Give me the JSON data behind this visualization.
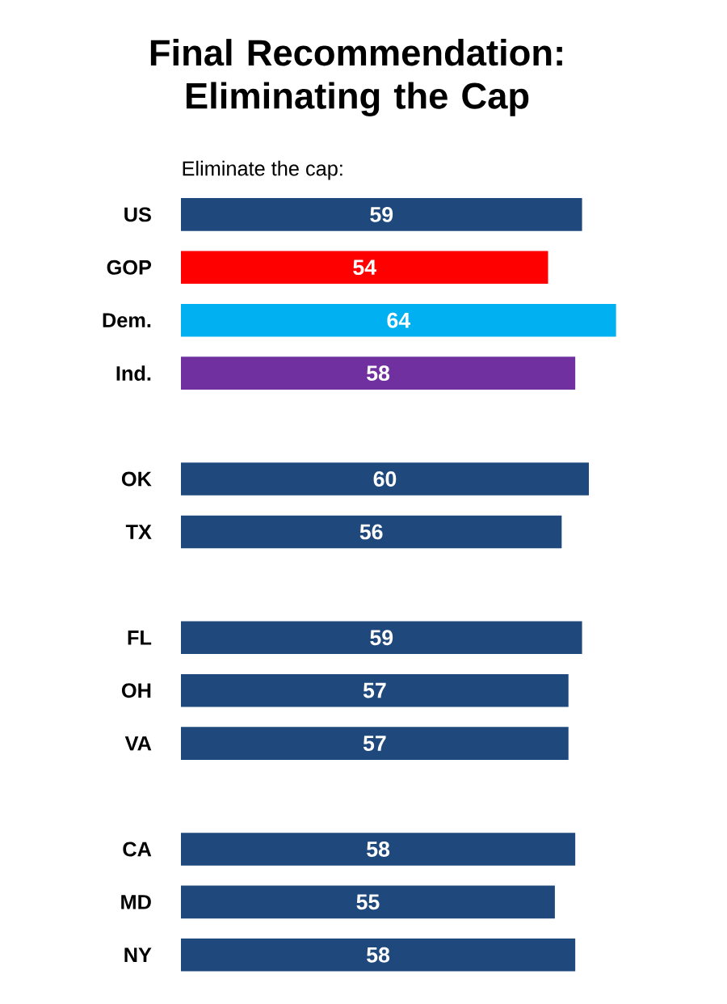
{
  "chart_data": {
    "type": "bar",
    "orientation": "horizontal",
    "title": "Final Recommendation: Eliminating the Cap",
    "subtitle": "Eliminate the cap:",
    "categories": [
      "US",
      "GOP",
      "Dem.",
      "Ind.",
      null,
      "OK",
      "TX",
      null,
      "FL",
      "OH",
      "VA",
      null,
      "CA",
      "MD",
      "NY"
    ],
    "values": [
      59,
      54,
      64,
      58,
      null,
      60,
      56,
      null,
      59,
      57,
      57,
      null,
      58,
      55,
      58
    ],
    "colors": [
      "#1f497d",
      "#ff0000",
      "#00b0f0",
      "#7030a0",
      null,
      "#1f497d",
      "#1f497d",
      null,
      "#1f497d",
      "#1f497d",
      "#1f497d",
      null,
      "#1f497d",
      "#1f497d",
      "#1f497d"
    ],
    "data_labels": true
  }
}
